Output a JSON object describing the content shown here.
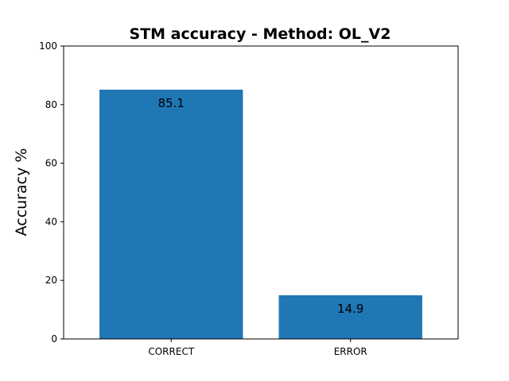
{
  "chart_data": {
    "type": "bar",
    "title": "STM accuracy - Method: OL_V2",
    "xlabel": "",
    "ylabel": "Accuracy %",
    "categories": [
      "CORRECT",
      "ERROR"
    ],
    "values": [
      85.1,
      14.9
    ],
    "data_labels": [
      "85.1",
      "14.9"
    ],
    "ylim": [
      0,
      100
    ],
    "yticks": [
      "0",
      "20",
      "40",
      "60",
      "80",
      "100"
    ],
    "grid": false,
    "bar_color": "#1f77b4"
  }
}
